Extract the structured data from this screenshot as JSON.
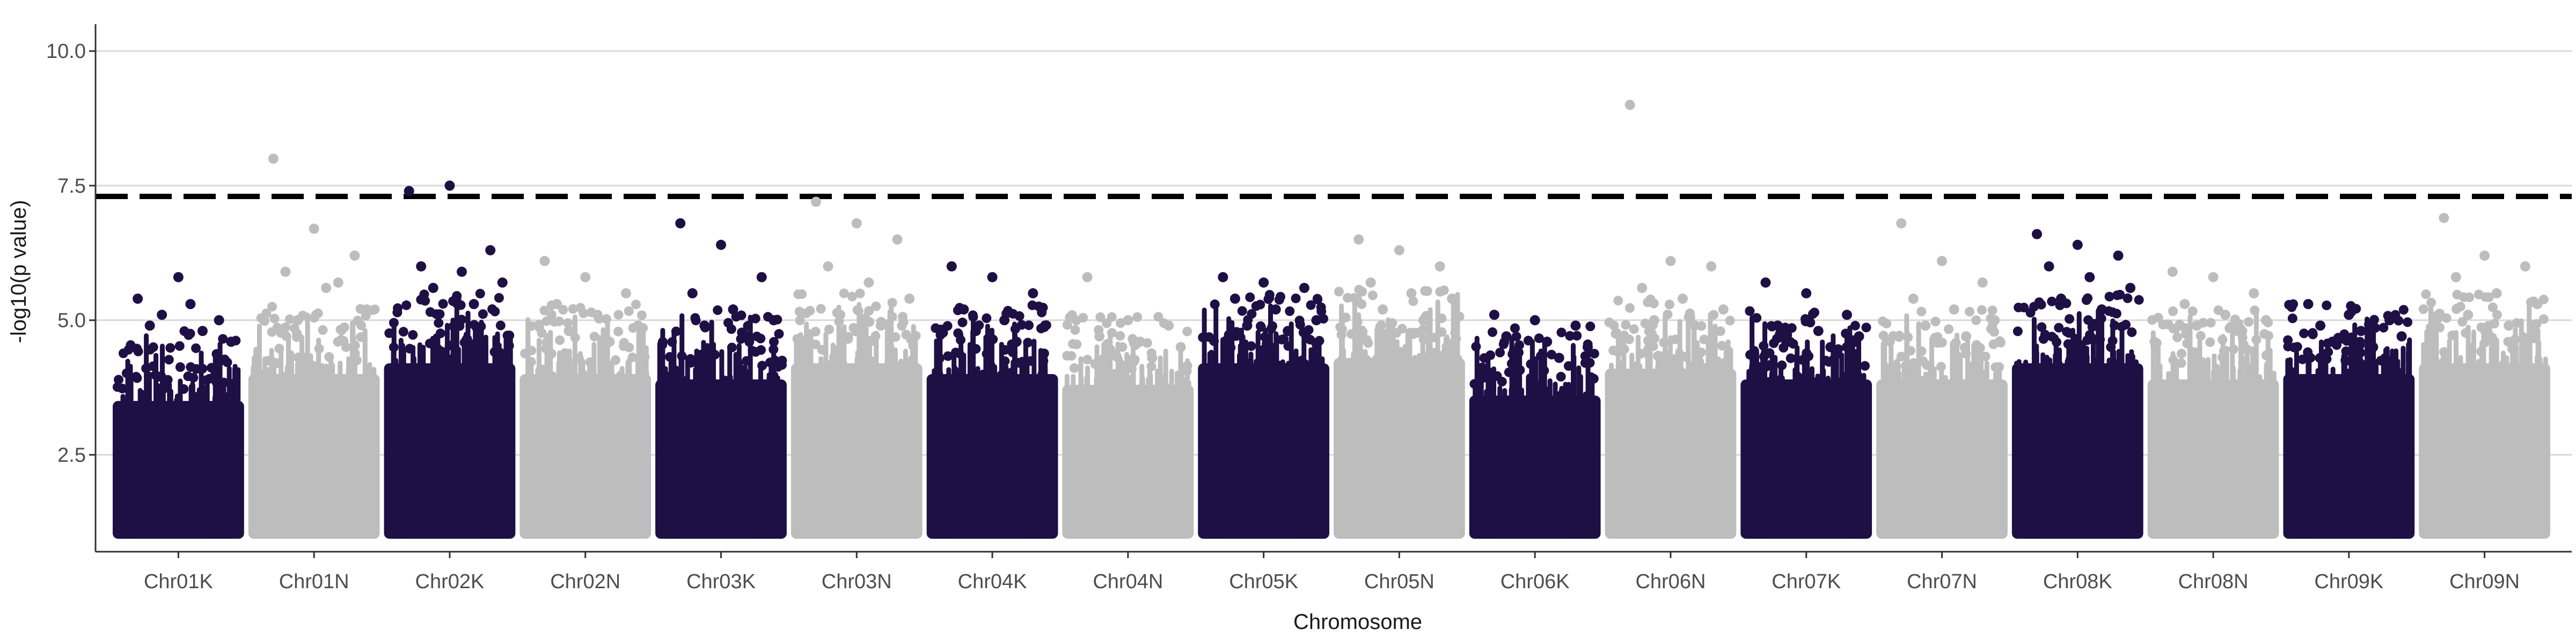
{
  "chart_data": {
    "type": "scatter",
    "xlabel": "Chromosome",
    "ylabel": "-log10(p value)",
    "ylim": [
      0.7,
      10.5
    ],
    "yticks": [
      2.5,
      5.0,
      7.5,
      10.0
    ],
    "ytick_labels": [
      "2.5",
      "5.0",
      "7.5",
      "10.0"
    ],
    "grid": "horizontal-major",
    "threshold": 7.3,
    "threshold_style": "dashed",
    "colors": {
      "dark": "#1e0f45",
      "light": "#bdbdbd",
      "threshold": "#000000",
      "grid": "#d9d9d9"
    },
    "series": [
      {
        "name": "Chr01K",
        "color": "dark",
        "cloud_max": 3.5,
        "peaks": [
          5.4,
          5.8,
          5.0,
          4.9,
          5.3,
          4.6,
          5.1,
          4.8
        ]
      },
      {
        "name": "Chr01N",
        "color": "light",
        "cloud_max": 4.0,
        "peaks": [
          8.0,
          6.7,
          6.2,
          5.9,
          5.6,
          5.2,
          5.0,
          5.7
        ]
      },
      {
        "name": "Chr02K",
        "color": "dark",
        "cloud_max": 4.2,
        "peaks": [
          7.4,
          7.5,
          6.3,
          6.0,
          5.9,
          5.7,
          5.6,
          5.3
        ]
      },
      {
        "name": "Chr02N",
        "color": "light",
        "cloud_max": 4.0,
        "peaks": [
          6.1,
          5.8,
          5.5,
          5.3,
          5.1,
          4.9,
          4.8,
          4.6
        ]
      },
      {
        "name": "Chr03K",
        "color": "dark",
        "cloud_max": 3.9,
        "peaks": [
          6.8,
          6.4,
          5.8,
          5.5,
          5.2,
          5.0,
          4.9,
          4.7
        ]
      },
      {
        "name": "Chr03N",
        "color": "light",
        "cloud_max": 4.2,
        "peaks": [
          7.2,
          6.8,
          6.5,
          6.0,
          5.7,
          5.4,
          5.1,
          4.9
        ]
      },
      {
        "name": "Chr04K",
        "color": "dark",
        "cloud_max": 4.0,
        "peaks": [
          6.0,
          5.8,
          5.5,
          5.2,
          5.0,
          4.9,
          4.8,
          4.6
        ]
      },
      {
        "name": "Chr04N",
        "color": "light",
        "cloud_max": 3.8,
        "peaks": [
          5.8,
          5.0,
          4.9,
          4.7,
          4.6,
          4.5,
          4.4,
          4.3
        ]
      },
      {
        "name": "Chr05K",
        "color": "dark",
        "cloud_max": 4.2,
        "peaks": [
          5.8,
          5.7,
          5.6,
          5.4,
          5.2,
          5.0,
          4.9,
          4.8
        ]
      },
      {
        "name": "Chr05N",
        "color": "light",
        "cloud_max": 4.3,
        "peaks": [
          6.5,
          6.3,
          6.0,
          5.7,
          5.5,
          5.4,
          5.2,
          5.0
        ]
      },
      {
        "name": "Chr06K",
        "color": "dark",
        "cloud_max": 3.6,
        "peaks": [
          5.1,
          5.0,
          4.9,
          4.7,
          4.6,
          4.5,
          4.4,
          4.3
        ]
      },
      {
        "name": "Chr06N",
        "color": "light",
        "cloud_max": 4.1,
        "peaks": [
          9.0,
          6.1,
          6.0,
          5.6,
          5.4,
          5.2,
          5.0,
          4.9
        ]
      },
      {
        "name": "Chr07K",
        "color": "dark",
        "cloud_max": 3.9,
        "peaks": [
          5.7,
          5.5,
          5.1,
          4.9,
          4.8,
          4.7,
          4.6,
          4.5
        ]
      },
      {
        "name": "Chr07N",
        "color": "light",
        "cloud_max": 3.9,
        "peaks": [
          6.8,
          6.1,
          5.7,
          5.4,
          5.2,
          5.0,
          4.9,
          4.7
        ]
      },
      {
        "name": "Chr08K",
        "color": "dark",
        "cloud_max": 4.2,
        "peaks": [
          6.6,
          6.4,
          6.2,
          6.0,
          5.8,
          5.6,
          5.4,
          5.2
        ]
      },
      {
        "name": "Chr08N",
        "color": "light",
        "cloud_max": 3.9,
        "peaks": [
          5.9,
          5.8,
          5.5,
          5.3,
          5.1,
          5.0,
          4.9,
          4.8
        ]
      },
      {
        "name": "Chr09K",
        "color": "dark",
        "cloud_max": 4.0,
        "peaks": [
          5.3,
          5.1,
          5.0,
          4.9,
          4.8,
          4.7,
          4.6,
          4.5
        ]
      },
      {
        "name": "Chr09N",
        "color": "light",
        "cloud_max": 4.2,
        "peaks": [
          6.9,
          6.2,
          6.0,
          5.8,
          5.5,
          5.3,
          5.1,
          4.9
        ]
      }
    ]
  }
}
